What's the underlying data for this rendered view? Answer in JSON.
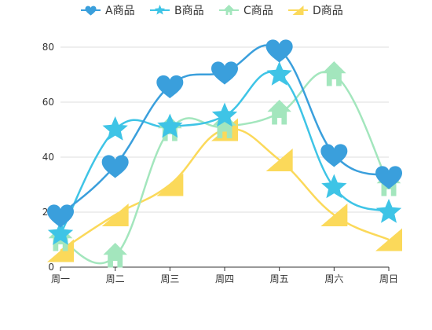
{
  "chart_data": {
    "type": "line",
    "smooth": true,
    "categories": [
      "周一",
      "周二",
      "周三",
      "周四",
      "周五",
      "周六",
      "周日"
    ],
    "ylim": [
      0,
      80
    ],
    "yticks": [
      0,
      20,
      40,
      60,
      80
    ],
    "grid": true,
    "legend_position": "top-center",
    "series": [
      {
        "name": "A商品",
        "values": [
          19,
          37,
          66,
          71,
          79,
          41,
          33
        ],
        "color": "#3a9fdc",
        "symbol": "heart",
        "symbol_name": "heart-icon"
      },
      {
        "name": "B商品",
        "values": [
          12,
          50,
          51,
          55,
          70,
          29,
          20
        ],
        "color": "#3ec4e6",
        "symbol": "star",
        "symbol_name": "star-icon"
      },
      {
        "name": "C商品",
        "values": [
          10,
          4,
          50,
          51,
          56,
          70,
          30
        ],
        "color": "#a3e6bd",
        "symbol": "house",
        "symbol_name": "house-icon"
      },
      {
        "name": "D商品",
        "values": [
          6,
          19,
          30,
          50,
          39,
          19,
          10
        ],
        "color": "#fbd95a",
        "symbol": "triangle",
        "symbol_name": "triangle-icon"
      }
    ]
  }
}
